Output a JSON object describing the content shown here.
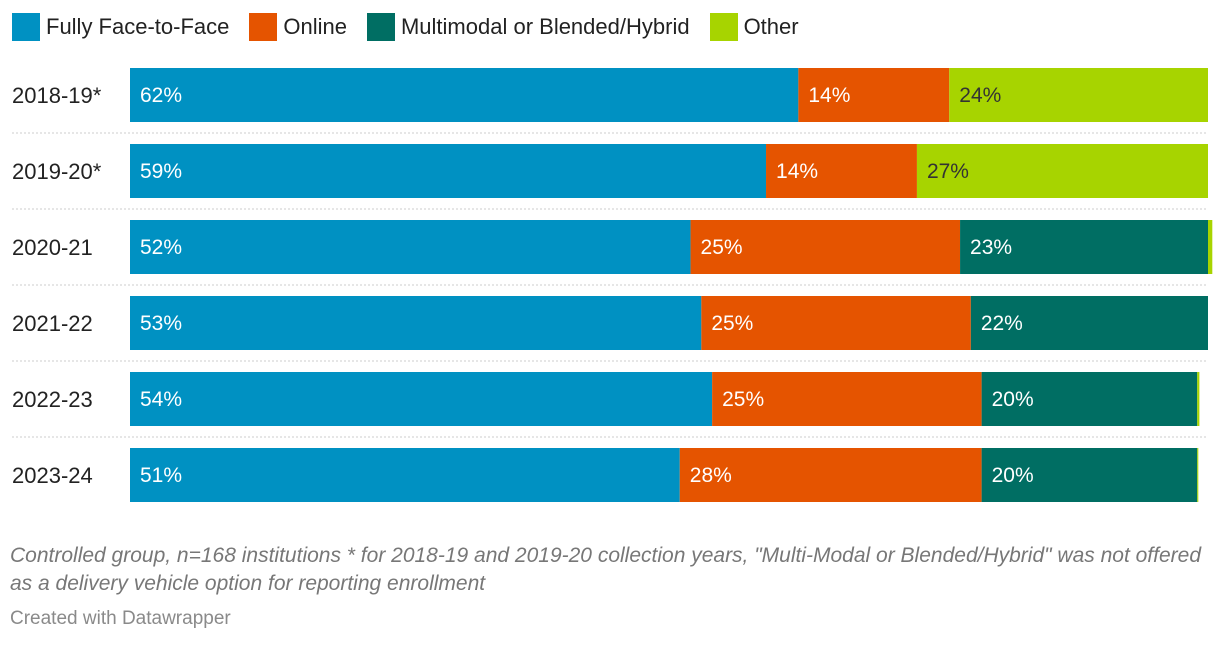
{
  "legend": [
    {
      "label": "Fully Face-to-Face",
      "color": "#0091c2"
    },
    {
      "label": "Online",
      "color": "#e55400"
    },
    {
      "label": "Multimodal or Blended/Hybrid",
      "color": "#006e63"
    },
    {
      "label": "Other",
      "color": "#a7d400"
    }
  ],
  "chart_data": {
    "type": "bar",
    "orientation": "horizontal",
    "stacked": true,
    "categories": [
      "2018-19*",
      "2019-20*",
      "2020-21",
      "2021-22",
      "2022-23",
      "2023-24"
    ],
    "series": [
      {
        "name": "Fully Face-to-Face",
        "color": "#0091c2",
        "values": [
          62,
          59,
          52,
          53,
          54,
          51
        ],
        "labels": [
          "62%",
          "59%",
          "52%",
          "53%",
          "54%",
          "51%"
        ],
        "label_color": "#ffffff"
      },
      {
        "name": "Online",
        "color": "#e55400",
        "values": [
          14,
          14,
          25,
          25,
          25,
          28
        ],
        "labels": [
          "14%",
          "14%",
          "25%",
          "25%",
          "25%",
          "28%"
        ],
        "label_color": "#ffffff"
      },
      {
        "name": "Multimodal or Blended/Hybrid",
        "color": "#006e63",
        "values": [
          0,
          0,
          23,
          22,
          20,
          20
        ],
        "labels": [
          "",
          "",
          "23%",
          "22%",
          "20%",
          "20%"
        ],
        "label_color": "#ffffff"
      },
      {
        "name": "Other",
        "color": "#a7d400",
        "values": [
          24,
          27,
          0.4,
          0,
          0.2,
          0.1
        ],
        "labels": [
          "24%",
          "27%",
          "",
          "",
          "",
          ""
        ],
        "label_color": "#333333"
      }
    ],
    "xlim": [
      0,
      100
    ],
    "grid": false,
    "legend_position": "top-left"
  },
  "notes": "Controlled group, n=168 institutions * for 2018-19 and 2019-20 collection years, \"Multi-Modal or Blended/Hybrid\" was not offered as a delivery vehicle option for reporting enrollment",
  "credit": "Created with Datawrapper"
}
